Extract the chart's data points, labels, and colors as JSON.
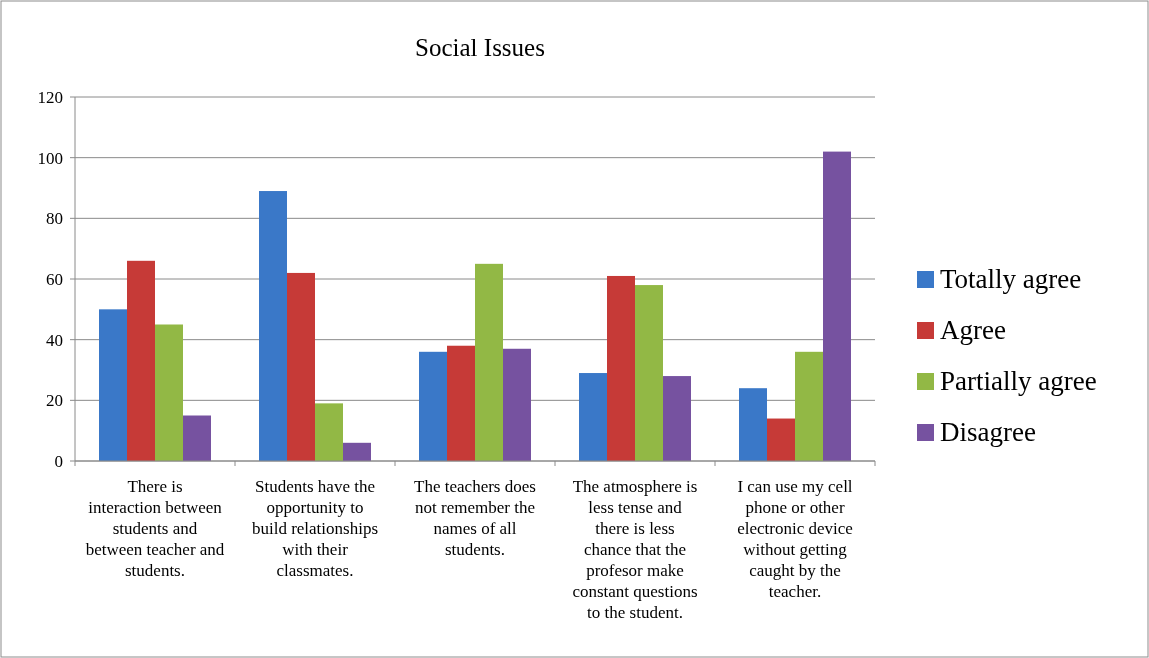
{
  "chart_data": {
    "type": "bar",
    "title": "Social Issues",
    "categories": [
      "There is interaction between students and between teacher and students.",
      "Students have the opportunity to build relationships with their classmates.",
      "The teachers does not remember the names of all students.",
      "The atmosphere is less tense and there is less chance that the profesor make constant questions to the student.",
      "I can use my cell phone or other electronic device without getting caught by the teacher."
    ],
    "series": [
      {
        "name": "Totally agree",
        "color": "#3a78c8",
        "values": [
          50,
          89,
          36,
          29,
          24
        ]
      },
      {
        "name": "Agree",
        "color": "#c63a37",
        "values": [
          66,
          62,
          38,
          61,
          14
        ]
      },
      {
        "name": "Partially agree",
        "color": "#92b845",
        "values": [
          45,
          19,
          65,
          58,
          36
        ]
      },
      {
        "name": "Disagree",
        "color": "#7652a0",
        "values": [
          15,
          6,
          37,
          28,
          102
        ]
      }
    ],
    "ylim": [
      0,
      120
    ],
    "yticks": [
      0,
      20,
      40,
      60,
      80,
      100,
      120
    ],
    "grid": "y",
    "legend": "right"
  }
}
